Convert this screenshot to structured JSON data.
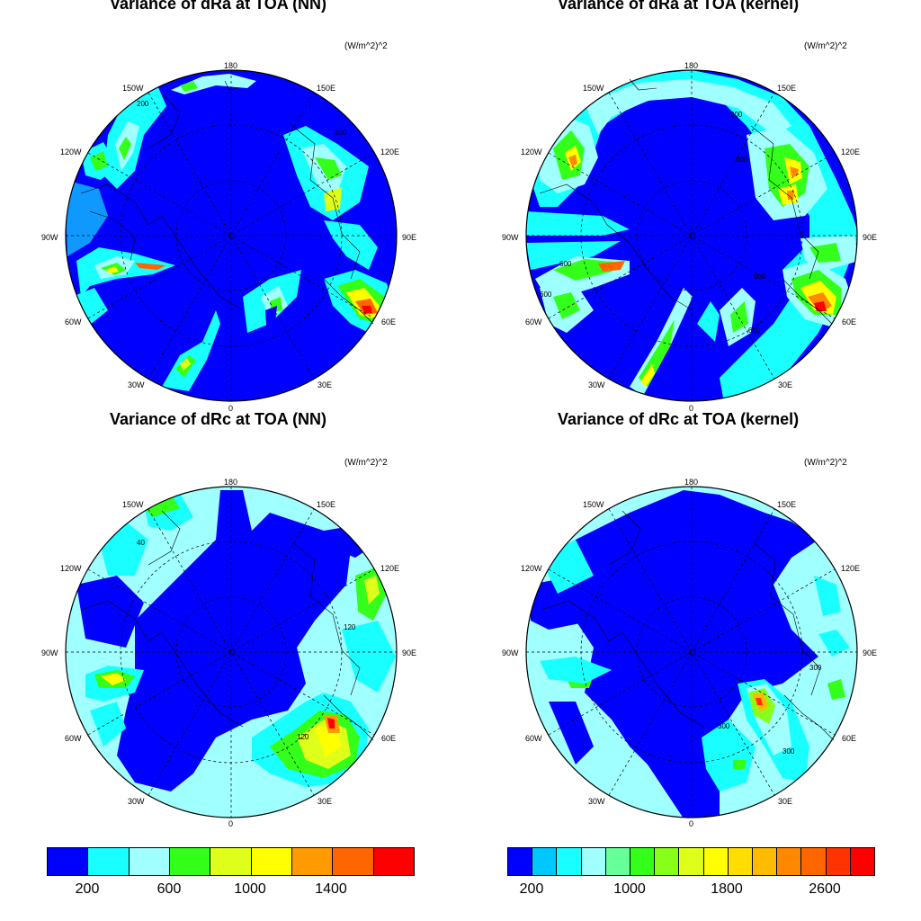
{
  "panels": [
    {
      "title": "Variance of dRa at TOA (NN)",
      "units": "(W/m^2)^2"
    },
    {
      "title": "Variance of dRa at TOA (kernel)",
      "units": "(W/m^2)^2"
    },
    {
      "title": "Variance of dRc at TOA (NN)",
      "units": "(W/m^2)^2"
    },
    {
      "title": "Variance of dRc at TOA (kernel)",
      "units": "(W/m^2)^2"
    }
  ],
  "longitude_labels": [
    "180",
    "150E",
    "120E",
    "90E",
    "60E",
    "30E",
    "0",
    "30W",
    "60W",
    "90W",
    "120W",
    "150W"
  ],
  "colorbar_nn": {
    "colors": [
      "#0000ff",
      "#19ffff",
      "#a0ffff",
      "#33ff1a",
      "#ddff1a",
      "#ffff00",
      "#ff9a00",
      "#ff6600",
      "#ff0000"
    ],
    "labels": [
      "200",
      "600",
      "1000",
      "1400"
    ]
  },
  "colorbar_kernel": {
    "colors": [
      "#0000ff",
      "#00c8ff",
      "#19ffff",
      "#a0ffff",
      "#66ff99",
      "#33ff1a",
      "#88ff1a",
      "#ddff1a",
      "#ffff00",
      "#ffdd00",
      "#ffbb00",
      "#ff8800",
      "#ff6600",
      "#ff3300",
      "#ff0000"
    ],
    "labels": [
      "200",
      "1000",
      "1800",
      "2600"
    ]
  },
  "contour_labels": {
    "p1": [
      "200",
      "200"
    ],
    "p2": [
      "600",
      "200",
      "600",
      "600",
      "600",
      "600"
    ],
    "p3": [
      "120",
      "120",
      "40"
    ],
    "p4": [
      "300",
      "300",
      "300"
    ]
  }
}
